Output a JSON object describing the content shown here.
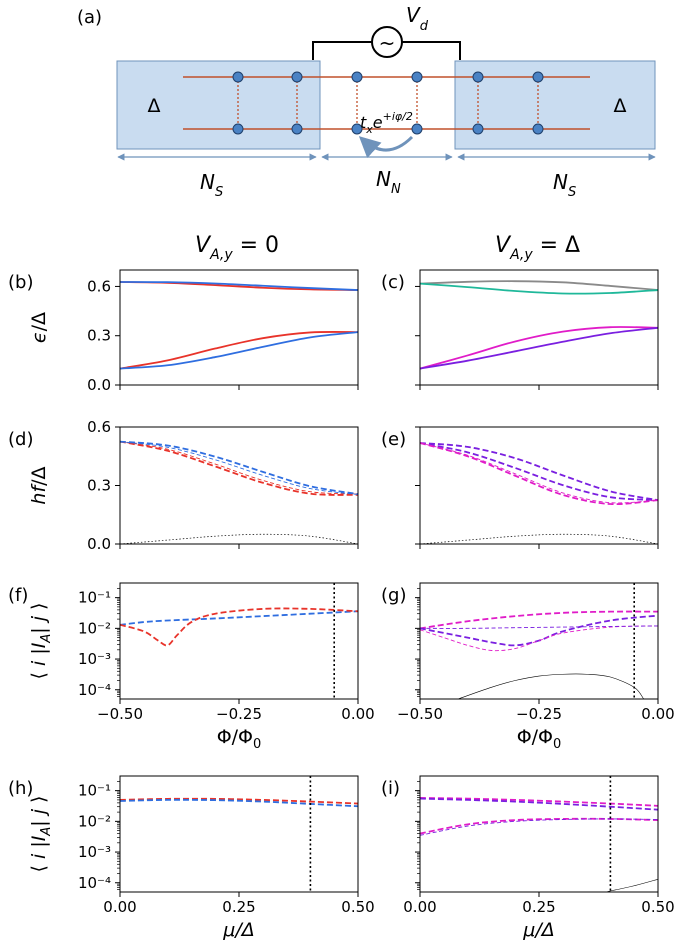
{
  "schematic": {
    "panel_label": "(a)",
    "source_label": "V",
    "source_sub": "d",
    "source_symbol": "~",
    "gap_left": "Δ",
    "gap_right": "Δ",
    "hopping_label": "t",
    "hopping_sub": "x",
    "hopping_exp_base": "e",
    "hopping_exp": "+iφ/2",
    "region_left": "N",
    "region_left_sub": "S",
    "region_mid": "N",
    "region_mid_sub": "N",
    "region_right": "N",
    "region_right_sub": "S"
  },
  "column_titles": {
    "left": "V",
    "left_sub": "A,y",
    "left_rhs": " = 0",
    "right": "V",
    "right_sub": "A,y",
    "right_rhs": " = Δ"
  },
  "colors": {
    "red": "#e8332a",
    "blue": "#2f6ee0",
    "magenta": "#e01cc8",
    "purple": "#7a1fe0",
    "teal": "#1fb89a",
    "gray": "#8a8a8a",
    "black": "#000000",
    "box_fill": "#c9dcf0",
    "box_stroke": "#6f93bb",
    "chain": "#c0502b",
    "site": "#4a82c4"
  },
  "chart_data": [
    {
      "panel": "(b)",
      "type": "line",
      "ylabel": "ϵ/Δ",
      "xlabel": "",
      "xlim": [
        -0.5,
        0.0
      ],
      "ylim": [
        0.0,
        0.7
      ],
      "yscale": "linear",
      "yticks": [
        0.0,
        0.3,
        0.6
      ],
      "ytick_labels": [
        "0.0",
        "0.3",
        "0.6"
      ],
      "xtick_labels": [],
      "xticks": [
        -0.5,
        -0.25,
        0.0
      ],
      "series": [
        {
          "name": "upper-red",
          "color": "red",
          "style": "solid",
          "width": 1.8,
          "x": [
            -0.5,
            -0.4,
            -0.3,
            -0.2,
            -0.1,
            0.0
          ],
          "y": [
            0.627,
            0.622,
            0.608,
            0.592,
            0.582,
            0.578
          ]
        },
        {
          "name": "upper-blue",
          "color": "blue",
          "style": "solid",
          "width": 1.8,
          "x": [
            -0.5,
            -0.4,
            -0.3,
            -0.2,
            -0.1,
            0.0
          ],
          "y": [
            0.627,
            0.626,
            0.618,
            0.604,
            0.59,
            0.578
          ]
        },
        {
          "name": "lower-red",
          "color": "red",
          "style": "solid",
          "width": 1.8,
          "x": [
            -0.5,
            -0.4,
            -0.3,
            -0.2,
            -0.1,
            0.0
          ],
          "y": [
            0.1,
            0.15,
            0.222,
            0.285,
            0.32,
            0.322
          ]
        },
        {
          "name": "lower-blue",
          "color": "blue",
          "style": "solid",
          "width": 1.8,
          "x": [
            -0.5,
            -0.4,
            -0.3,
            -0.2,
            -0.1,
            0.0
          ],
          "y": [
            0.1,
            0.12,
            0.17,
            0.232,
            0.29,
            0.322
          ]
        }
      ]
    },
    {
      "panel": "(c)",
      "type": "line",
      "ylabel": "",
      "xlabel": "",
      "xlim": [
        -0.5,
        0.0
      ],
      "ylim": [
        0.0,
        0.7
      ],
      "yscale": "linear",
      "yticks": [
        0.0,
        0.3,
        0.6
      ],
      "ytick_labels": [],
      "xtick_labels": [],
      "xticks": [
        -0.5,
        -0.25,
        0.0
      ],
      "series": [
        {
          "name": "upper-gray",
          "color": "gray",
          "style": "solid",
          "width": 1.8,
          "x": [
            -0.5,
            -0.4,
            -0.3,
            -0.2,
            -0.1,
            0.0
          ],
          "y": [
            0.617,
            0.628,
            0.632,
            0.625,
            0.603,
            0.578
          ]
        },
        {
          "name": "upper-teal",
          "color": "teal",
          "style": "solid",
          "width": 1.8,
          "x": [
            -0.5,
            -0.4,
            -0.3,
            -0.2,
            -0.1,
            0.0
          ],
          "y": [
            0.617,
            0.596,
            0.572,
            0.557,
            0.56,
            0.578
          ]
        },
        {
          "name": "lower-magenta",
          "color": "magenta",
          "style": "solid",
          "width": 1.8,
          "x": [
            -0.5,
            -0.4,
            -0.3,
            -0.2,
            -0.1,
            0.0
          ],
          "y": [
            0.1,
            0.18,
            0.265,
            0.325,
            0.352,
            0.348
          ]
        },
        {
          "name": "lower-purple",
          "color": "purple",
          "style": "solid",
          "width": 1.8,
          "x": [
            -0.5,
            -0.4,
            -0.3,
            -0.2,
            -0.1,
            0.0
          ],
          "y": [
            0.1,
            0.148,
            0.205,
            0.263,
            0.315,
            0.348
          ]
        }
      ]
    },
    {
      "panel": "(d)",
      "type": "line",
      "ylabel": "hf/Δ",
      "xlabel": "",
      "xlim": [
        -0.5,
        0.0
      ],
      "ylim": [
        0.0,
        0.6
      ],
      "yscale": "linear",
      "yticks": [
        0.0,
        0.3,
        0.6
      ],
      "ytick_labels": [
        "0.0",
        "0.3",
        "0.6"
      ],
      "xtick_labels": [],
      "xticks": [
        -0.5,
        -0.25,
        0.0
      ],
      "series": [
        {
          "name": "red-1",
          "color": "red",
          "style": "dashed",
          "width": 1.8,
          "x": [
            -0.5,
            -0.4,
            -0.3,
            -0.2,
            -0.1,
            0.0
          ],
          "y": [
            0.525,
            0.478,
            0.398,
            0.314,
            0.258,
            0.252
          ]
        },
        {
          "name": "red-2",
          "color": "red",
          "style": "dashed",
          "width": 0.9,
          "x": [
            -0.5,
            -0.4,
            -0.3,
            -0.2,
            -0.1,
            0.0
          ],
          "y": [
            0.525,
            0.486,
            0.41,
            0.326,
            0.268,
            0.256
          ]
        },
        {
          "name": "blue-1",
          "color": "blue",
          "style": "dashed",
          "width": 1.8,
          "x": [
            -0.5,
            -0.4,
            -0.3,
            -0.2,
            -0.1,
            0.0
          ],
          "y": [
            0.525,
            0.505,
            0.448,
            0.37,
            0.296,
            0.256
          ]
        },
        {
          "name": "blue-2",
          "color": "blue",
          "style": "dashed",
          "width": 0.9,
          "x": [
            -0.5,
            -0.4,
            -0.3,
            -0.2,
            -0.1,
            0.0
          ],
          "y": [
            0.525,
            0.496,
            0.432,
            0.352,
            0.284,
            0.254
          ]
        },
        {
          "name": "black",
          "color": "black",
          "style": "dotted",
          "width": 0.7,
          "x": [
            -0.5,
            -0.4,
            -0.3,
            -0.2,
            -0.1,
            0.0
          ],
          "y": [
            0.0,
            0.02,
            0.04,
            0.05,
            0.04,
            0.0
          ]
        }
      ]
    },
    {
      "panel": "(e)",
      "type": "line",
      "ylabel": "",
      "xlabel": "",
      "xlim": [
        -0.5,
        0.0
      ],
      "ylim": [
        0.0,
        0.6
      ],
      "yscale": "linear",
      "yticks": [
        0.0,
        0.3,
        0.6
      ],
      "ytick_labels": [],
      "xtick_labels": [],
      "xticks": [
        -0.5,
        -0.25,
        0.0
      ],
      "series": [
        {
          "name": "purple-1",
          "color": "purple",
          "style": "dashed",
          "width": 1.8,
          "x": [
            -0.5,
            -0.4,
            -0.3,
            -0.2,
            -0.1,
            0.0
          ],
          "y": [
            0.518,
            0.498,
            0.44,
            0.352,
            0.27,
            0.225
          ]
        },
        {
          "name": "purple-2",
          "color": "purple",
          "style": "dashed",
          "width": 1.8,
          "x": [
            -0.5,
            -0.4,
            -0.3,
            -0.2,
            -0.1,
            0.0
          ],
          "y": [
            0.518,
            0.47,
            0.39,
            0.302,
            0.24,
            0.225
          ]
        },
        {
          "name": "magenta-1",
          "color": "magenta",
          "style": "dashed",
          "width": 1.8,
          "x": [
            -0.5,
            -0.4,
            -0.3,
            -0.2,
            -0.1,
            0.0
          ],
          "y": [
            0.518,
            0.45,
            0.35,
            0.252,
            0.205,
            0.225
          ]
        },
        {
          "name": "magenta-2",
          "color": "magenta",
          "style": "dashed",
          "width": 0.9,
          "x": [
            -0.5,
            -0.4,
            -0.3,
            -0.2,
            -0.1,
            0.0
          ],
          "y": [
            0.518,
            0.455,
            0.36,
            0.262,
            0.212,
            0.225
          ]
        },
        {
          "name": "black",
          "color": "black",
          "style": "dotted",
          "width": 0.7,
          "x": [
            -0.5,
            -0.4,
            -0.3,
            -0.2,
            -0.1,
            0.0
          ],
          "y": [
            0.0,
            0.02,
            0.04,
            0.05,
            0.04,
            0.0
          ]
        }
      ]
    },
    {
      "panel": "(f)",
      "type": "line",
      "ylabel": "⟨ i |I_A| j ⟩",
      "xlabel": "Φ/Φ0",
      "xlim": [
        -0.5,
        0.0
      ],
      "ylim": [
        5e-05,
        0.3
      ],
      "yscale": "log",
      "yticks": [
        0.0001,
        0.001,
        0.01,
        0.1
      ],
      "ytick_labels": [
        "10⁻⁴",
        "10⁻³",
        "10⁻²",
        "10⁻¹"
      ],
      "xticks": [
        -0.5,
        -0.25,
        0.0
      ],
      "xtick_labels": [
        "−0.50",
        "−0.25",
        "0.00"
      ],
      "vline": -0.05,
      "series": [
        {
          "name": "blue",
          "color": "blue",
          "style": "dashed",
          "width": 1.8,
          "x": [
            -0.5,
            -0.45,
            -0.4,
            -0.3,
            -0.2,
            -0.1,
            0.0
          ],
          "y": [
            0.013,
            0.016,
            0.018,
            0.021,
            0.025,
            0.03,
            0.036
          ]
        },
        {
          "name": "red",
          "color": "red",
          "style": "dashed",
          "width": 1.8,
          "x": [
            -0.5,
            -0.45,
            -0.42,
            -0.4,
            -0.38,
            -0.35,
            -0.3,
            -0.2,
            -0.1,
            0.0
          ],
          "y": [
            0.013,
            0.008,
            0.004,
            0.0028,
            0.006,
            0.016,
            0.03,
            0.043,
            0.043,
            0.036
          ]
        }
      ]
    },
    {
      "panel": "(g)",
      "type": "line",
      "ylabel": "",
      "xlabel": "Φ/Φ0",
      "xlim": [
        -0.5,
        0.0
      ],
      "ylim": [
        5e-05,
        0.3
      ],
      "yscale": "log",
      "yticks": [
        0.0001,
        0.001,
        0.01,
        0.1
      ],
      "ytick_labels": [],
      "xticks": [
        -0.5,
        -0.25,
        0.0
      ],
      "xtick_labels": [
        "−0.50",
        "−0.25",
        "0.00"
      ],
      "vline": -0.05,
      "series": [
        {
          "name": "magenta-top",
          "color": "magenta",
          "style": "dashed",
          "width": 1.8,
          "x": [
            -0.5,
            -0.4,
            -0.3,
            -0.2,
            -0.1,
            0.0
          ],
          "y": [
            0.01,
            0.017,
            0.025,
            0.032,
            0.035,
            0.035
          ]
        },
        {
          "name": "purple-dip",
          "color": "purple",
          "style": "dashed",
          "width": 1.8,
          "x": [
            -0.5,
            -0.4,
            -0.35,
            -0.3,
            -0.25,
            -0.2,
            -0.1,
            0.0
          ],
          "y": [
            0.01,
            0.005,
            0.0035,
            0.0028,
            0.004,
            0.008,
            0.018,
            0.026
          ]
        },
        {
          "name": "magenta-thin",
          "color": "magenta",
          "style": "dashed",
          "width": 0.9,
          "x": [
            -0.5,
            -0.45,
            -0.4,
            -0.35,
            -0.3,
            -0.25,
            -0.2,
            -0.1,
            0.0
          ],
          "y": [
            0.009,
            0.005,
            0.0028,
            0.0019,
            0.0022,
            0.004,
            0.007,
            0.011,
            0.012
          ]
        },
        {
          "name": "purple-thin",
          "color": "purple",
          "style": "dashed",
          "width": 0.9,
          "x": [
            -0.5,
            -0.4,
            -0.3,
            -0.2,
            -0.1,
            0.0
          ],
          "y": [
            0.01,
            0.01,
            0.0105,
            0.011,
            0.0115,
            0.012
          ]
        },
        {
          "name": "black",
          "color": "black",
          "style": "solid",
          "width": 0.6,
          "x": [
            -0.42,
            -0.35,
            -0.3,
            -0.25,
            -0.2,
            -0.15,
            -0.1,
            -0.05,
            -0.03
          ],
          "y": [
            5e-05,
            0.00012,
            0.0002,
            0.00028,
            0.00032,
            0.00032,
            0.00026,
            0.00012,
            5e-05
          ]
        }
      ]
    },
    {
      "panel": "(h)",
      "type": "line",
      "ylabel": "⟨ i |I_A| j ⟩",
      "xlabel": "μ/Δ",
      "xlim": [
        0.0,
        0.5
      ],
      "ylim": [
        5e-05,
        0.3
      ],
      "yscale": "log",
      "yticks": [
        0.0001,
        0.001,
        0.01,
        0.1
      ],
      "ytick_labels": [
        "10⁻⁴",
        "10⁻³",
        "10⁻²",
        "10⁻¹"
      ],
      "xticks": [
        0.0,
        0.25,
        0.5
      ],
      "xtick_labels": [
        "0.00",
        "0.25",
        "0.50"
      ],
      "vline": 0.4,
      "series": [
        {
          "name": "red",
          "color": "red",
          "style": "dashed",
          "width": 1.8,
          "x": [
            0.0,
            0.1,
            0.2,
            0.3,
            0.4,
            0.5
          ],
          "y": [
            0.05,
            0.054,
            0.054,
            0.05,
            0.044,
            0.038
          ]
        },
        {
          "name": "blue",
          "color": "blue",
          "style": "dashed",
          "width": 1.8,
          "x": [
            0.0,
            0.1,
            0.2,
            0.3,
            0.4,
            0.5
          ],
          "y": [
            0.046,
            0.05,
            0.049,
            0.044,
            0.037,
            0.031
          ]
        }
      ]
    },
    {
      "panel": "(i)",
      "type": "line",
      "ylabel": "",
      "xlabel": "μ/Δ",
      "xlim": [
        0.0,
        0.5
      ],
      "ylim": [
        5e-05,
        0.3
      ],
      "yscale": "log",
      "yticks": [
        0.0001,
        0.001,
        0.01,
        0.1
      ],
      "ytick_labels": [],
      "xticks": [
        0.0,
        0.25,
        0.5
      ],
      "xtick_labels": [
        "0.00",
        "0.25",
        "0.50"
      ],
      "vline": 0.4,
      "series": [
        {
          "name": "magenta-top",
          "color": "magenta",
          "style": "dashed",
          "width": 1.8,
          "x": [
            0.0,
            0.1,
            0.2,
            0.3,
            0.4,
            0.5
          ],
          "y": [
            0.058,
            0.055,
            0.05,
            0.044,
            0.038,
            0.032
          ]
        },
        {
          "name": "purple-top",
          "color": "purple",
          "style": "dashed",
          "width": 1.8,
          "x": [
            0.0,
            0.1,
            0.2,
            0.3,
            0.4,
            0.5
          ],
          "y": [
            0.055,
            0.05,
            0.044,
            0.037,
            0.03,
            0.024
          ]
        },
        {
          "name": "magenta-mid",
          "color": "magenta",
          "style": "dashed",
          "width": 1.8,
          "x": [
            0.0,
            0.1,
            0.2,
            0.3,
            0.4,
            0.5
          ],
          "y": [
            0.004,
            0.008,
            0.011,
            0.012,
            0.012,
            0.011
          ]
        },
        {
          "name": "purple-mid",
          "color": "purple",
          "style": "dashed",
          "width": 0.9,
          "x": [
            0.0,
            0.1,
            0.2,
            0.3,
            0.4,
            0.5
          ],
          "y": [
            0.0035,
            0.007,
            0.01,
            0.0115,
            0.012,
            0.0115
          ]
        },
        {
          "name": "black",
          "color": "black",
          "style": "solid",
          "width": 0.6,
          "x": [
            0.39,
            0.45,
            0.5
          ],
          "y": [
            5e-05,
            8e-05,
            0.00013
          ]
        }
      ]
    }
  ]
}
